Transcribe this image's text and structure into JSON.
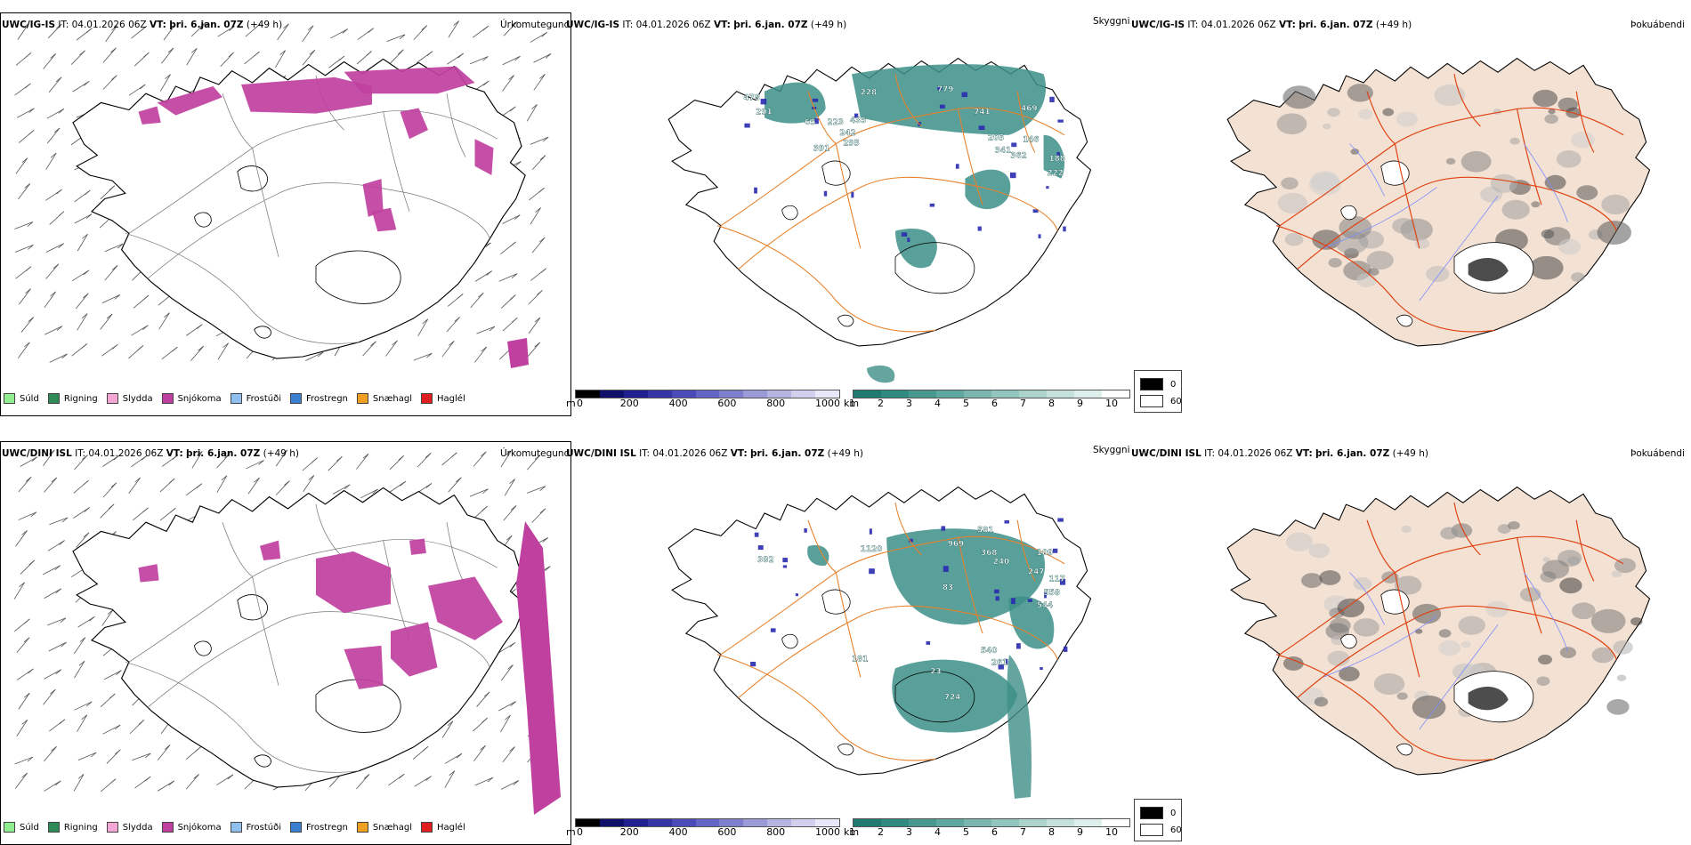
{
  "rows": [
    {
      "model": "UWC/IG-IS",
      "it_label": "IT:",
      "it_value": "04.01.2026 06Z",
      "vt_label": "VT:",
      "vt_value": "þri. 6.jan. 07Z",
      "lead": "(+49 h)",
      "labels": [
        {
          "text": "228"
        },
        {
          "text": "779"
        },
        {
          "text": "291"
        },
        {
          "text": "65"
        },
        {
          "text": "223"
        },
        {
          "text": "435"
        },
        {
          "text": "242"
        },
        {
          "text": "295"
        },
        {
          "text": "391"
        },
        {
          "text": "741"
        },
        {
          "text": "469"
        },
        {
          "text": "205"
        },
        {
          "text": "341"
        },
        {
          "text": "146"
        },
        {
          "text": "362"
        },
        {
          "text": "188"
        },
        {
          "text": "222"
        },
        {
          "text": "478"
        }
      ]
    },
    {
      "model": "UWC/DINI ISL",
      "it_label": "IT:",
      "it_value": "04.01.2026 06Z",
      "vt_label": "VT:",
      "vt_value": "þri. 6.jan. 07Z",
      "lead": "(+49 h)",
      "labels": [
        {
          "text": "969"
        },
        {
          "text": "581"
        },
        {
          "text": "368"
        },
        {
          "text": "240"
        },
        {
          "text": "109"
        },
        {
          "text": "247"
        },
        {
          "text": "117"
        },
        {
          "text": "558"
        },
        {
          "text": "544"
        },
        {
          "text": "382"
        },
        {
          "text": "1120"
        },
        {
          "text": "83"
        },
        {
          "text": "181"
        },
        {
          "text": "540"
        },
        {
          "text": "261"
        },
        {
          "text": "724"
        },
        {
          "text": "23"
        }
      ]
    }
  ],
  "panel_titles": {
    "precip_type": "Úrkomutegund",
    "visibility": "Skyggni",
    "fog": "Þokuábendi"
  },
  "precip_legend": [
    {
      "label": "Súld",
      "color": "#90ee90"
    },
    {
      "label": "Rigning",
      "color": "#2e8b57"
    },
    {
      "label": "Slydda",
      "color": "#f4a6d7"
    },
    {
      "label": "Snjókoma",
      "color": "#c040a0"
    },
    {
      "label": "Frostúði",
      "color": "#8fc0f0"
    },
    {
      "label": "Frostregn",
      "color": "#3a7fd0"
    },
    {
      "label": "Snæhagl",
      "color": "#f0a020"
    },
    {
      "label": "Haglél",
      "color": "#e02020"
    }
  ],
  "ceiling_scale": {
    "unit": "m",
    "ticks": [
      "0",
      "200",
      "400",
      "600",
      "800",
      "1000"
    ],
    "colors": [
      "#000000",
      "#10106a",
      "#202090",
      "#3535a8",
      "#4a4ab8",
      "#6464c4",
      "#7e7ecf",
      "#9a9ad9",
      "#b5b5e3",
      "#d0d0ee",
      "#e8e8f8"
    ]
  },
  "visibility_scale": {
    "unit": "km",
    "ticks": [
      "1",
      "2",
      "3",
      "4",
      "5",
      "6",
      "7",
      "8",
      "9",
      "10"
    ],
    "colors": [
      "#1f7a72",
      "#2f8a82",
      "#47998f",
      "#5fa89f",
      "#79b7ae",
      "#92c5bd",
      "#acd3cc",
      "#c5e1db",
      "#deeeea",
      "#ffffff"
    ]
  },
  "fog_legend": [
    {
      "label": "0",
      "color": "#000000"
    },
    {
      "label": "60",
      "color": "#ffffff"
    }
  ],
  "colors": {
    "snow": "#c040a0",
    "cloud": "#3d8f88",
    "road": "#e8802a",
    "land": "#f3e1d3",
    "fog_road": "#e04010",
    "river": "#7a8cff"
  }
}
